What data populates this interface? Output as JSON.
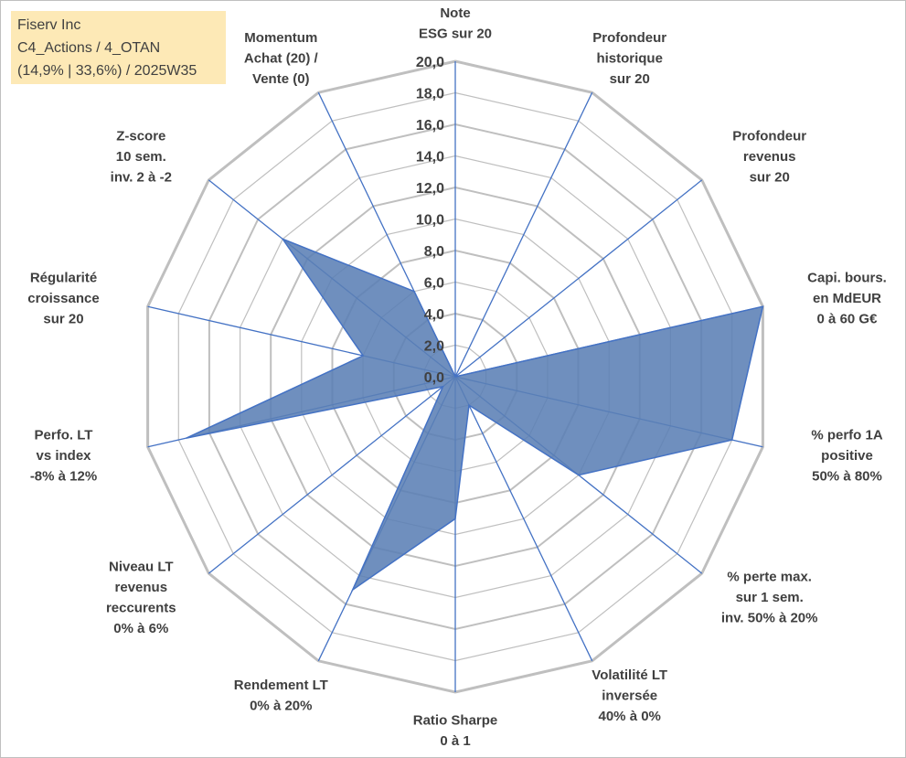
{
  "info": {
    "line1": "Fiserv Inc",
    "line2": "C4_Actions / 4_OTAN",
    "line3": "(14,9% | 33,6%) / 2025W35"
  },
  "chart_data": {
    "type": "radar",
    "title": "",
    "rlim": [
      0,
      20
    ],
    "ticks": [
      "0,0",
      "2,0",
      "4,0",
      "6,0",
      "8,0",
      "10,0",
      "12,0",
      "14,0",
      "16,0",
      "18,0",
      "20,0"
    ],
    "grid": true,
    "legend": "none",
    "fill_color": "#5b7fb5",
    "line_color": "#4472c4",
    "grid_color": "#bfbfbf",
    "axes": [
      {
        "name": "Note ESG sur 20",
        "lines": [
          "Note",
          "ESG sur 20"
        ],
        "value": 0
      },
      {
        "name": "Profondeur historique sur 20",
        "lines": [
          "Profondeur",
          "historique",
          "sur 20"
        ],
        "value": 0
      },
      {
        "name": "Profondeur revenus sur 20",
        "lines": [
          "Profondeur",
          "revenus",
          "sur 20"
        ],
        "value": 0
      },
      {
        "name": "Capi. bours. en MdEUR 0 à 60 G€",
        "lines": [
          "Capi. bours.",
          "en MdEUR",
          "0 à 60 G€"
        ],
        "value": 20
      },
      {
        "name": "% perfo 1A positive 50% à 80%",
        "lines": [
          "% perfo 1A",
          "positive",
          "50% à 80%"
        ],
        "value": 18
      },
      {
        "name": "% perte max. sur 1 sem. inv. 50% à 20%",
        "lines": [
          "% perte max.",
          "sur 1 sem.",
          "inv. 50% à 20%"
        ],
        "value": 10
      },
      {
        "name": "Volatilité LT inversée 40% à 0%",
        "lines": [
          "Volatilité LT",
          "inversée",
          "40% à 0%"
        ],
        "value": 2
      },
      {
        "name": "Ratio Sharpe 0 à 1",
        "lines": [
          "Ratio Sharpe",
          "0 à 1"
        ],
        "value": 9
      },
      {
        "name": "Rendement LT 0% à 20%",
        "lines": [
          "Rendement LT",
          "0% à 20%"
        ],
        "value": 15
      },
      {
        "name": "Niveau LT revenus reccurents 0% à 6%",
        "lines": [
          "Niveau LT",
          "revenus",
          "reccurents",
          "0% à 6%"
        ],
        "value": 1
      },
      {
        "name": "Perfo. LT vs index -8% à 12%",
        "lines": [
          "Perfo. LT",
          "vs index",
          "-8% à 12%"
        ],
        "value": 17.5
      },
      {
        "name": "Régularité croissance sur 20",
        "lines": [
          "Régularité",
          "croissance",
          "sur 20"
        ],
        "value": 6
      },
      {
        "name": "Z-score 10 sem. inv. 2 à -2",
        "lines": [
          "Z-score",
          "10 sem.",
          "inv. 2 à -2"
        ],
        "value": 14
      },
      {
        "name": "Momentum Achat (20) / Vente (0)",
        "lines": [
          "Momentum",
          "Achat (20) /",
          "Vente (0)"
        ],
        "value": 6
      }
    ]
  }
}
